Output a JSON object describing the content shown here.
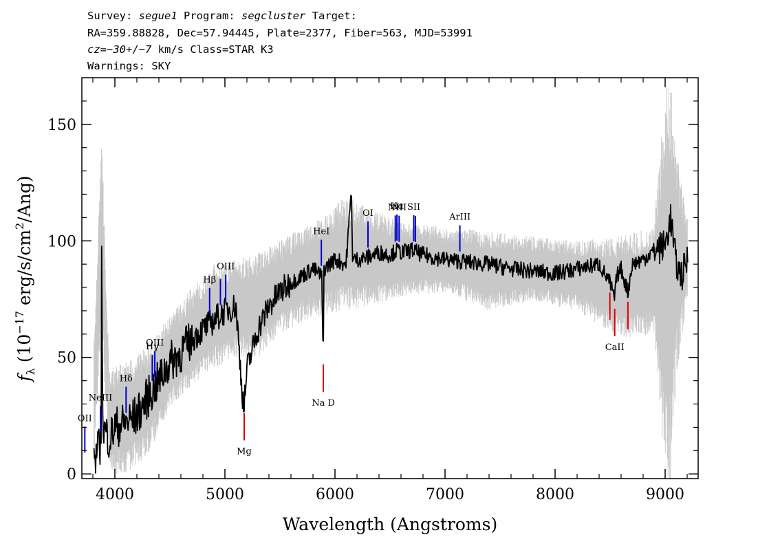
{
  "header": {
    "line1": {
      "p1": "Survey: ",
      "survey": "segue1",
      "p2": " Program: ",
      "program": "segcluster",
      "p3": " Target:"
    },
    "line2": "RA=359.88828, Dec=57.94445, Plate=2377, Fiber=563, MJD=53991",
    "line3": {
      "cz": "cz=−30+/−7",
      "rest": " km/s Class=STAR K3"
    },
    "line4": "Warnings: SKY"
  },
  "chart_data": {
    "type": "line",
    "title": "Survey: segue1 Program: segcluster Target: RA=359.88828, Dec=57.94445, Plate=2377, Fiber=563, MJD=53991",
    "xlabel": "Wavelength (Angstroms)",
    "ylabel": "f_λ (10^-17 erg/s/cm^2/Ang)",
    "xlim": [
      3700,
      9300
    ],
    "ylim": [
      -2,
      170
    ],
    "x_ticks": [
      4000,
      5000,
      6000,
      7000,
      8000,
      9000
    ],
    "x_tick_labels": [
      "4000",
      "5000",
      "6000",
      "7000",
      "8000",
      "9000"
    ],
    "y_ticks": [
      0,
      50,
      100,
      150
    ],
    "y_tick_labels": [
      "0",
      "50",
      "100",
      "150"
    ],
    "colors": {
      "flux": "#000000",
      "error": "#c8c8c8",
      "emission": "#0000cc",
      "absorption": "#dd0000"
    },
    "series": [
      {
        "name": "flux",
        "x": [
          3800,
          3850,
          3875,
          3880,
          3890,
          3950,
          4000,
          4100,
          4200,
          4300,
          4400,
          4500,
          4600,
          4700,
          4800,
          4900,
          5000,
          5100,
          5150,
          5170,
          5185,
          5200,
          5300,
          5400,
          5500,
          5600,
          5700,
          5800,
          5880,
          5893,
          5900,
          6000,
          6100,
          6150,
          6160,
          6200,
          6300,
          6400,
          6500,
          6563,
          6600,
          6700,
          6800,
          7000,
          7200,
          7400,
          7600,
          7800,
          8000,
          8200,
          8400,
          8498,
          8542,
          8560,
          8600,
          8662,
          8700,
          8800,
          8900,
          9000,
          9050,
          9100,
          9150,
          9200
        ],
        "values": [
          5,
          10,
          15,
          105,
          20,
          15,
          20,
          22,
          25,
          33,
          40,
          48,
          52,
          58,
          62,
          66,
          70,
          72,
          40,
          28,
          35,
          45,
          62,
          72,
          78,
          82,
          85,
          88,
          85,
          45,
          88,
          92,
          90,
          122,
          92,
          92,
          93,
          95,
          94,
          96,
          95,
          96,
          94,
          92,
          91,
          90,
          88,
          87,
          86,
          88,
          90,
          82,
          75,
          85,
          88,
          78,
          90,
          92,
          96,
          98,
          110,
          90,
          85,
          92
        ]
      },
      {
        "name": "error",
        "x": [
          3800,
          3880,
          3950,
          4100,
          4300,
          4500,
          4700,
          4900,
          5100,
          5300,
          5500,
          5700,
          5900,
          6100,
          6300,
          6600,
          7000,
          7400,
          7800,
          8200,
          8600,
          8900,
          9000,
          9050,
          9100,
          9200
        ],
        "upper": [
          45,
          148,
          45,
          48,
          55,
          68,
          80,
          90,
          92,
          95,
          100,
          106,
          110,
          120,
          114,
          108,
          106,
          104,
          102,
          100,
          102,
          106,
          170,
          170,
          140,
          110
        ],
        "lower": [
          -5,
          60,
          0,
          0,
          8,
          28,
          38,
          45,
          50,
          50,
          60,
          65,
          68,
          70,
          72,
          76,
          78,
          70,
          74,
          70,
          58,
          60,
          -5,
          -5,
          40,
          75
        ]
      }
    ],
    "annotations": {
      "emission": [
        {
          "label": "OII",
          "wavelength": 3727
        },
        {
          "label": "NeIII",
          "wavelength": 3869
        },
        {
          "label": "Hδ",
          "wavelength": 4102
        },
        {
          "label": "Hγ",
          "wavelength": 4340
        },
        {
          "label": "OIII",
          "wavelength": 4363
        },
        {
          "label": "Hβ",
          "wavelength": 4861
        },
        {
          "label": "OIII",
          "wavelength": 4959
        },
        {
          "label": "OIII",
          "wavelength": 5007
        },
        {
          "label": "HeI",
          "wavelength": 5876
        },
        {
          "label": "OI",
          "wavelength": 6300
        },
        {
          "label": "NII",
          "wavelength": 6548
        },
        {
          "label": "Hα",
          "wavelength": 6563
        },
        {
          "label": "NII",
          "wavelength": 6583
        },
        {
          "label": "SII",
          "wavelength": 6716
        },
        {
          "label": "SII",
          "wavelength": 6731
        },
        {
          "label": "ArIII",
          "wavelength": 7135
        }
      ],
      "absorption": [
        {
          "label": "Mg",
          "wavelength": 5175
        },
        {
          "label": "Na D",
          "wavelength": 5894
        },
        {
          "label": "CaII",
          "wavelength": 8498
        },
        {
          "label": "CaII",
          "wavelength": 8542
        },
        {
          "label": "CaII",
          "wavelength": 8662
        }
      ]
    }
  }
}
